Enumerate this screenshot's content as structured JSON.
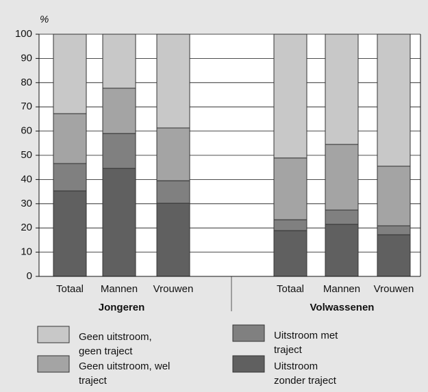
{
  "chart_data": {
    "type": "bar",
    "stacked": true,
    "y_unit_label": "%",
    "categories": [
      "Totaal",
      "Mannen",
      "Vrouwen",
      "Totaal",
      "Mannen",
      "Vrouwen"
    ],
    "groups": [
      {
        "name": "Jongeren",
        "count": 3
      },
      {
        "name": "Volwassenen",
        "count": 3
      }
    ],
    "series": [
      {
        "name": "Uitstroom zonder traject",
        "color": "#606060",
        "values": [
          35.3,
          44.6,
          30.2,
          18.9,
          21.5,
          17.2
        ]
      },
      {
        "name": "Uitstroom met traject",
        "color": "#808080",
        "values": [
          11.3,
          14.4,
          9.3,
          4.5,
          5.9,
          3.7
        ]
      },
      {
        "name": "Geen uitstroom, wel traject",
        "color": "#a4a4a4",
        "values": [
          20.6,
          18.7,
          21.8,
          25.5,
          27.1,
          24.6
        ]
      },
      {
        "name": "Geen uitstroom, geen traject",
        "color": "#c8c8c8",
        "values": [
          32.8,
          22.3,
          38.7,
          51.1,
          45.5,
          54.5
        ]
      }
    ],
    "ylim": [
      0,
      100
    ],
    "yticks": [
      0,
      10,
      20,
      30,
      40,
      50,
      60,
      70,
      80,
      90,
      100
    ],
    "grid": true
  }
}
